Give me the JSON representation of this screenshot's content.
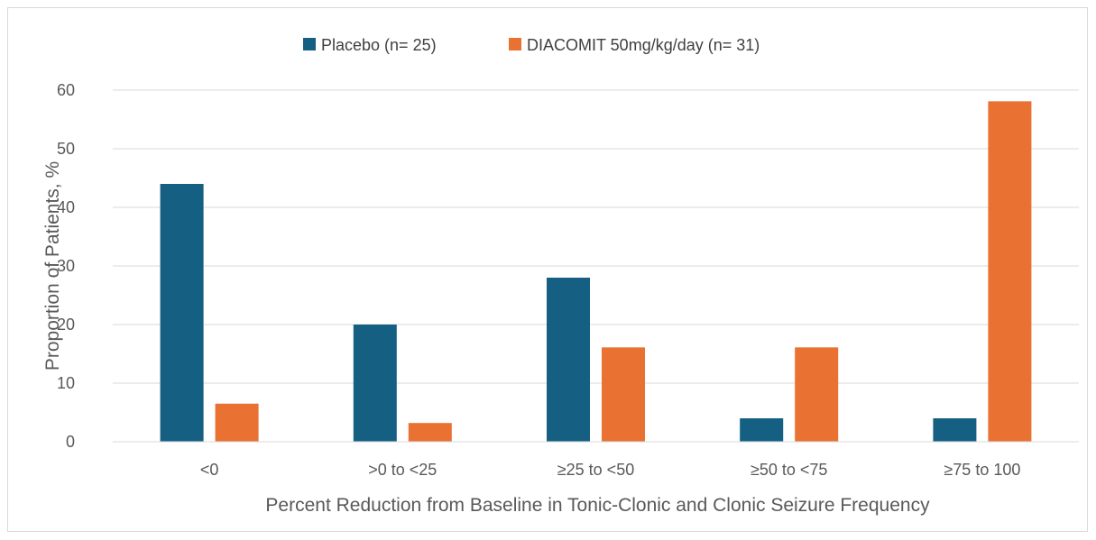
{
  "chart_data": {
    "type": "bar",
    "title": "",
    "xlabel": "Percent Reduction from Baseline in Tonic-Clonic and Clonic Seizure Frequency",
    "ylabel": "Proportion of Patients, %",
    "ylim": [
      0,
      60
    ],
    "yticks": [
      "0",
      "10",
      "20",
      "30",
      "40",
      "50",
      "60"
    ],
    "grid": true,
    "legend_position": "top",
    "categories": [
      "<0",
      ">0 to <25",
      "≥25 to <50",
      "≥50 to <75",
      "≥75 to 100"
    ],
    "series": [
      {
        "name": "Placebo (n= 25)",
        "color": "#156082",
        "values": [
          44,
          20,
          28,
          4,
          4
        ]
      },
      {
        "name": "DIACOMIT 50mg/kg/day (n= 31)",
        "color": "#e97132",
        "values": [
          6.5,
          3.2,
          16.1,
          16.1,
          58.1
        ]
      }
    ]
  }
}
